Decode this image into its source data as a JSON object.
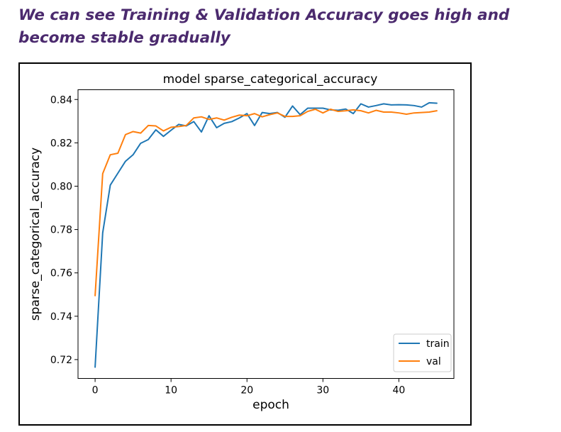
{
  "caption": "We can see Training & Validation Accuracy goes high and become stable gradually",
  "chart_data": {
    "type": "line",
    "title": "model sparse_categorical_accuracy",
    "xlabel": "epoch",
    "ylabel": "sparse_categorical_accuracy",
    "xlim": [
      -2.25,
      47.25
    ],
    "ylim": [
      0.7113,
      0.8445
    ],
    "xticks": [
      0,
      10,
      20,
      30,
      40
    ],
    "yticks": [
      0.72,
      0.74,
      0.76,
      0.78,
      0.8,
      0.82,
      0.84
    ],
    "ytick_labels": [
      "0.72",
      "0.74",
      "0.76",
      "0.78",
      "0.80",
      "0.82",
      "0.84"
    ],
    "legend_position": "lower right",
    "grid": false,
    "x": [
      0,
      1,
      2,
      3,
      4,
      5,
      6,
      7,
      8,
      9,
      10,
      11,
      12,
      13,
      14,
      15,
      16,
      17,
      18,
      19,
      20,
      21,
      22,
      23,
      24,
      25,
      26,
      27,
      28,
      29,
      30,
      31,
      32,
      33,
      34,
      35,
      36,
      37,
      38,
      39,
      40,
      41,
      42,
      43,
      44,
      45
    ],
    "series": [
      {
        "name": "train",
        "color": "#1f77b4",
        "values": [
          0.7165,
          0.7785,
          0.8005,
          0.806,
          0.8115,
          0.8145,
          0.8198,
          0.8215,
          0.826,
          0.823,
          0.8258,
          0.8285,
          0.8278,
          0.8298,
          0.825,
          0.8325,
          0.827,
          0.829,
          0.8298,
          0.8315,
          0.8335,
          0.828,
          0.834,
          0.8335,
          0.834,
          0.8318,
          0.837,
          0.833,
          0.836,
          0.836,
          0.836,
          0.8352,
          0.835,
          0.8356,
          0.8335,
          0.838,
          0.8365,
          0.8372,
          0.838,
          0.8375,
          0.8376,
          0.8375,
          0.8372,
          0.8365,
          0.8385,
          0.8383
        ]
      },
      {
        "name": "val",
        "color": "#ff7f0e",
        "values": [
          0.7495,
          0.8058,
          0.8145,
          0.8152,
          0.8238,
          0.8252,
          0.8245,
          0.828,
          0.8278,
          0.8255,
          0.8272,
          0.8275,
          0.828,
          0.8315,
          0.832,
          0.8308,
          0.8315,
          0.8305,
          0.8318,
          0.8328,
          0.8325,
          0.8335,
          0.832,
          0.833,
          0.8338,
          0.8322,
          0.8322,
          0.8325,
          0.8345,
          0.8355,
          0.8338,
          0.8355,
          0.8345,
          0.8348,
          0.8352,
          0.8348,
          0.8338,
          0.835,
          0.8342,
          0.8342,
          0.8338,
          0.8332,
          0.8338,
          0.834,
          0.8342,
          0.8348
        ]
      }
    ]
  }
}
